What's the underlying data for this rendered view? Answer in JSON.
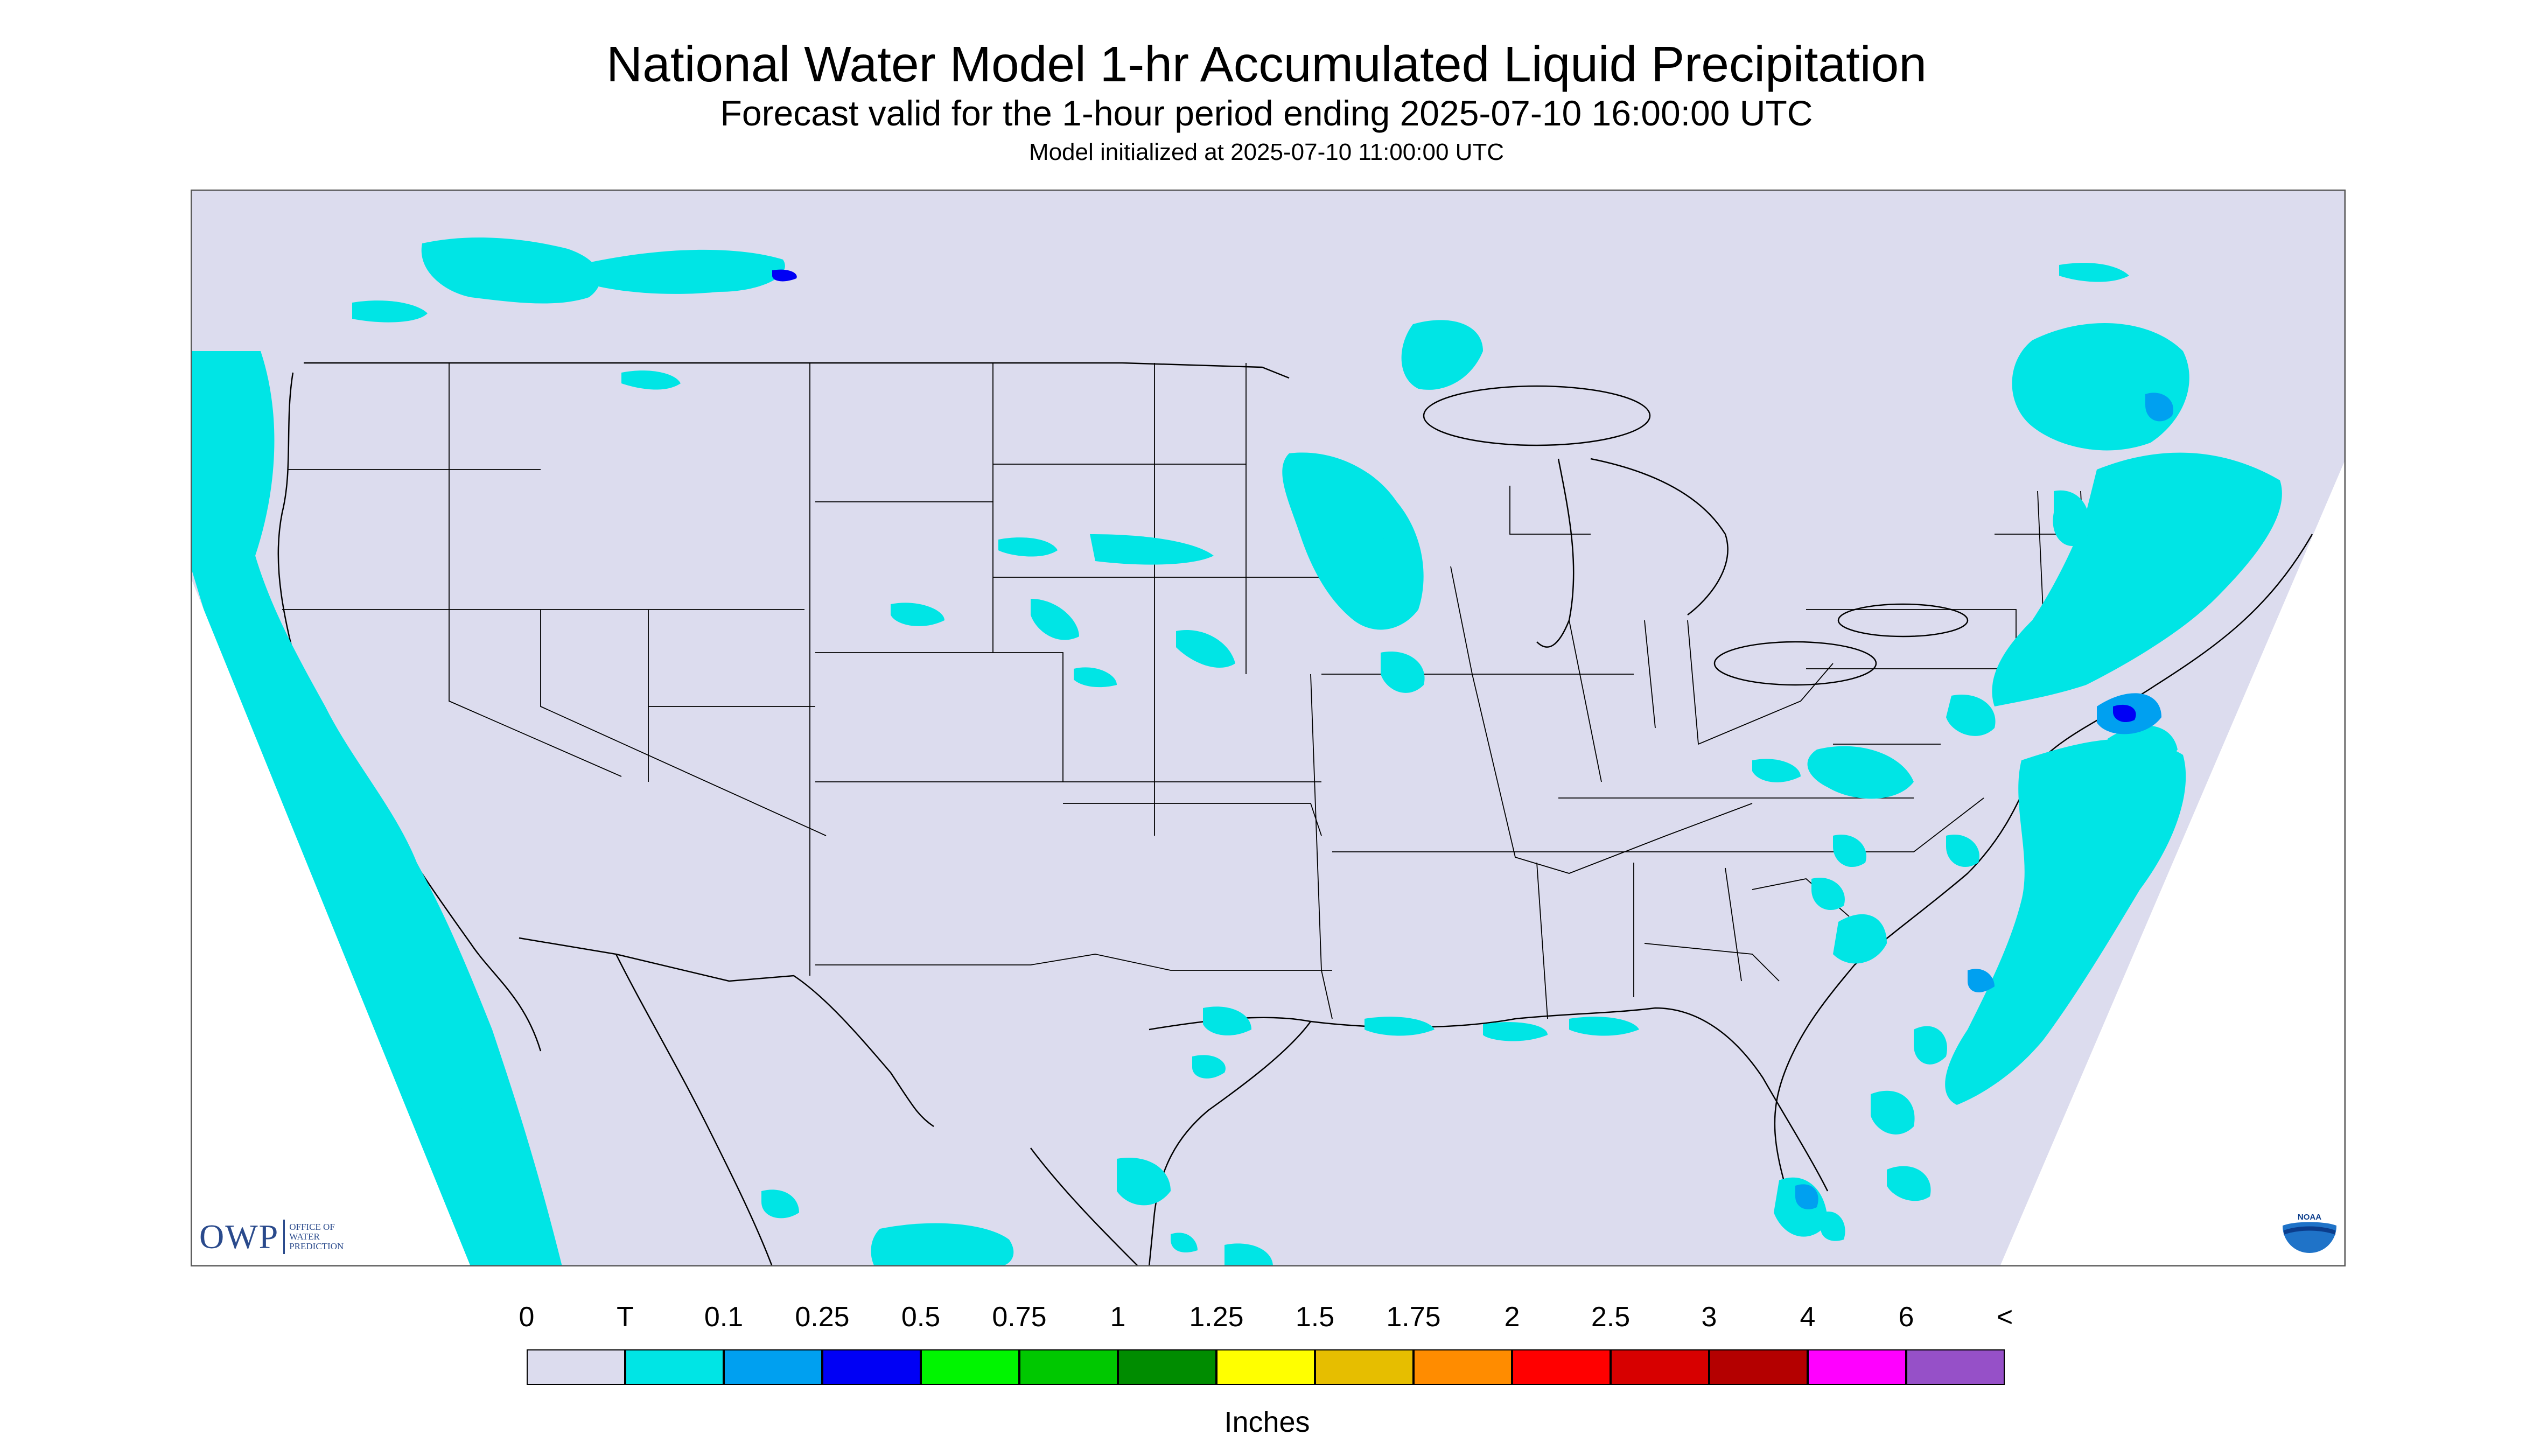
{
  "header": {
    "title": "National Water Model 1-hr Accumulated Liquid Precipitation",
    "subtitle": "Forecast valid for the 1-hour period ending 2025-07-10 16:00:00 UTC",
    "init_text": "Model initialized at 2025-07-10 11:00:00 UTC"
  },
  "map": {
    "region": "CONUS",
    "background_color": "#dcdcee",
    "outside_domain_color": "#ffffff",
    "boundary_color": "#000000"
  },
  "legend": {
    "labels": [
      "0",
      "T",
      "0.1",
      "0.25",
      "0.5",
      "0.75",
      "1",
      "1.25",
      "1.5",
      "1.75",
      "2",
      "2.5",
      "3",
      "4",
      "6",
      "<"
    ],
    "colors": [
      "#dcdcee",
      "#00e5e5",
      "#00a0f0",
      "#0000f5",
      "#00f500",
      "#00c800",
      "#008c00",
      "#ffff00",
      "#e6be00",
      "#ff8c00",
      "#ff0000",
      "#d70000",
      "#b40000",
      "#ff00ff",
      "#9650c8"
    ],
    "units": "Inches"
  },
  "logos": {
    "owp_mark": "OWP",
    "owp_text": [
      "OFFICE OF",
      "WATER",
      "PREDICTION"
    ],
    "noaa_text": "NOAA",
    "noaa_icon": "noaa-logo-icon"
  }
}
